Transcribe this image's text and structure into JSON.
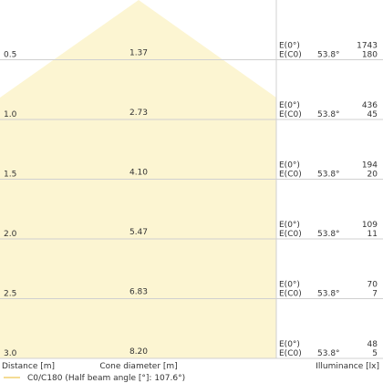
{
  "rows": [
    {
      "distance": "0.5",
      "diameter": "1.37",
      "e0_label": "E(0°)",
      "ec0_label": "E(C0)",
      "angle": "53.8°",
      "e0": "1743",
      "ec0": "180"
    },
    {
      "distance": "1.0",
      "diameter": "2.73",
      "e0_label": "E(0°)",
      "ec0_label": "E(C0)",
      "angle": "53.8°",
      "e0": "436",
      "ec0": "45"
    },
    {
      "distance": "1.5",
      "diameter": "4.10",
      "e0_label": "E(0°)",
      "ec0_label": "E(C0)",
      "angle": "53.8°",
      "e0": "194",
      "ec0": "20"
    },
    {
      "distance": "2.0",
      "diameter": "5.47",
      "e0_label": "E(0°)",
      "ec0_label": "E(C0)",
      "angle": "53.8°",
      "e0": "109",
      "ec0": "11"
    },
    {
      "distance": "2.5",
      "diameter": "6.83",
      "e0_label": "E(0°)",
      "ec0_label": "E(C0)",
      "angle": "53.8°",
      "e0": "70",
      "ec0": "7"
    },
    {
      "distance": "3.0",
      "diameter": "8.20",
      "e0_label": "E(0°)",
      "ec0_label": "E(C0)",
      "angle": "53.8°",
      "e0": "48",
      "ec0": "5"
    }
  ],
  "footer": {
    "distance_label": "Distance [m]",
    "diameter_label": "Cone diameter [m]",
    "illuminance_label": "Illuminance [lx]"
  },
  "legend": {
    "label": "C0/C180 (Half beam angle [°]: 107.6°)"
  }
}
